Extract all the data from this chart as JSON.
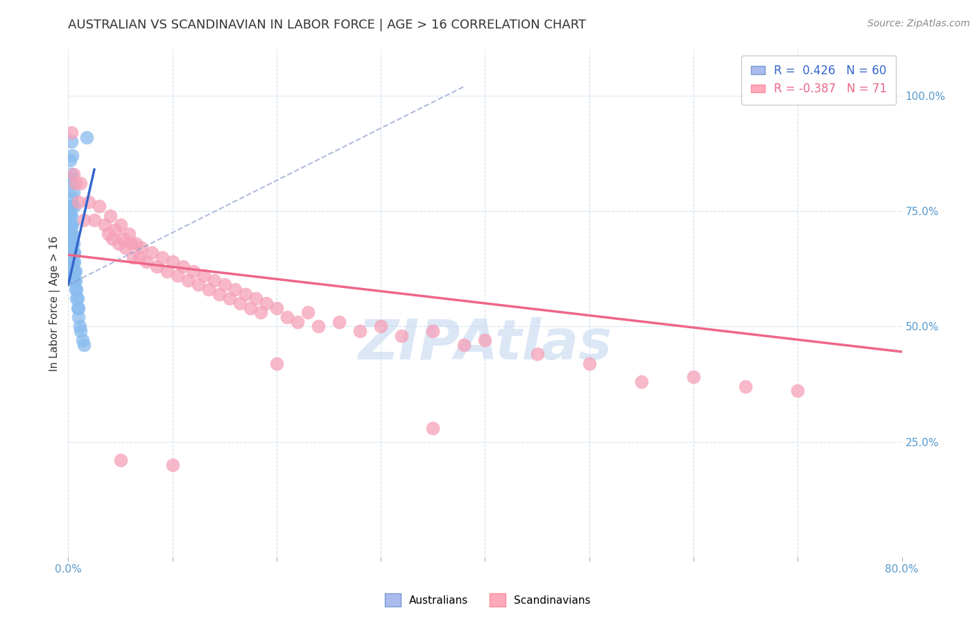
{
  "title": "AUSTRALIAN VS SCANDINAVIAN IN LABOR FORCE | AGE > 16 CORRELATION CHART",
  "source": "Source: ZipAtlas.com",
  "ylabel": "In Labor Force | Age > 16",
  "xlim": [
    0.0,
    0.8
  ],
  "ylim": [
    0.0,
    1.1
  ],
  "xticks": [
    0.0,
    0.1,
    0.2,
    0.3,
    0.4,
    0.5,
    0.6,
    0.7,
    0.8
  ],
  "yticks_right": [
    0.25,
    0.5,
    0.75,
    1.0
  ],
  "yticklabels_right": [
    "25.0%",
    "50.0%",
    "75.0%",
    "100.0%"
  ],
  "aus_color": "#88bbee",
  "scand_color": "#f5a0b8",
  "aus_line_color": "#3366cc",
  "scand_line_color": "#ee6688",
  "watermark": "ZIPAtlas",
  "watermark_color": "#c5d8f0",
  "aus_points": [
    [
      0.001,
      0.64
    ],
    [
      0.001,
      0.66
    ],
    [
      0.001,
      0.68
    ],
    [
      0.001,
      0.7
    ],
    [
      0.002,
      0.62
    ],
    [
      0.002,
      0.64
    ],
    [
      0.002,
      0.66
    ],
    [
      0.002,
      0.68
    ],
    [
      0.002,
      0.7
    ],
    [
      0.002,
      0.72
    ],
    [
      0.002,
      0.74
    ],
    [
      0.002,
      0.76
    ],
    [
      0.003,
      0.62
    ],
    [
      0.003,
      0.64
    ],
    [
      0.003,
      0.65
    ],
    [
      0.003,
      0.66
    ],
    [
      0.003,
      0.68
    ],
    [
      0.003,
      0.7
    ],
    [
      0.003,
      0.72
    ],
    [
      0.003,
      0.74
    ],
    [
      0.003,
      0.76
    ],
    [
      0.003,
      0.78
    ],
    [
      0.004,
      0.62
    ],
    [
      0.004,
      0.64
    ],
    [
      0.004,
      0.66
    ],
    [
      0.004,
      0.68
    ],
    [
      0.004,
      0.7
    ],
    [
      0.004,
      0.72
    ],
    [
      0.005,
      0.6
    ],
    [
      0.005,
      0.62
    ],
    [
      0.005,
      0.64
    ],
    [
      0.005,
      0.66
    ],
    [
      0.005,
      0.68
    ],
    [
      0.006,
      0.6
    ],
    [
      0.006,
      0.62
    ],
    [
      0.006,
      0.64
    ],
    [
      0.006,
      0.66
    ],
    [
      0.007,
      0.58
    ],
    [
      0.007,
      0.6
    ],
    [
      0.007,
      0.62
    ],
    [
      0.008,
      0.56
    ],
    [
      0.008,
      0.58
    ],
    [
      0.009,
      0.54
    ],
    [
      0.009,
      0.56
    ],
    [
      0.01,
      0.52
    ],
    [
      0.01,
      0.54
    ],
    [
      0.011,
      0.5
    ],
    [
      0.012,
      0.49
    ],
    [
      0.014,
      0.47
    ],
    [
      0.015,
      0.46
    ],
    [
      0.001,
      0.82
    ],
    [
      0.002,
      0.86
    ],
    [
      0.003,
      0.9
    ],
    [
      0.004,
      0.81
    ],
    [
      0.005,
      0.79
    ],
    [
      0.006,
      0.76
    ],
    [
      0.002,
      0.75
    ],
    [
      0.003,
      0.83
    ],
    [
      0.004,
      0.87
    ],
    [
      0.018,
      0.91
    ]
  ],
  "scand_points": [
    [
      0.003,
      0.92
    ],
    [
      0.005,
      0.83
    ],
    [
      0.007,
      0.81
    ],
    [
      0.01,
      0.77
    ],
    [
      0.012,
      0.81
    ],
    [
      0.015,
      0.73
    ],
    [
      0.02,
      0.77
    ],
    [
      0.025,
      0.73
    ],
    [
      0.03,
      0.76
    ],
    [
      0.035,
      0.72
    ],
    [
      0.038,
      0.7
    ],
    [
      0.04,
      0.74
    ],
    [
      0.042,
      0.69
    ],
    [
      0.045,
      0.71
    ],
    [
      0.048,
      0.68
    ],
    [
      0.05,
      0.72
    ],
    [
      0.052,
      0.69
    ],
    [
      0.055,
      0.67
    ],
    [
      0.058,
      0.7
    ],
    [
      0.06,
      0.68
    ],
    [
      0.062,
      0.65
    ],
    [
      0.065,
      0.68
    ],
    [
      0.068,
      0.65
    ],
    [
      0.07,
      0.67
    ],
    [
      0.075,
      0.64
    ],
    [
      0.08,
      0.66
    ],
    [
      0.085,
      0.63
    ],
    [
      0.09,
      0.65
    ],
    [
      0.095,
      0.62
    ],
    [
      0.1,
      0.64
    ],
    [
      0.105,
      0.61
    ],
    [
      0.11,
      0.63
    ],
    [
      0.115,
      0.6
    ],
    [
      0.12,
      0.62
    ],
    [
      0.125,
      0.59
    ],
    [
      0.13,
      0.61
    ],
    [
      0.135,
      0.58
    ],
    [
      0.14,
      0.6
    ],
    [
      0.145,
      0.57
    ],
    [
      0.15,
      0.59
    ],
    [
      0.155,
      0.56
    ],
    [
      0.16,
      0.58
    ],
    [
      0.165,
      0.55
    ],
    [
      0.17,
      0.57
    ],
    [
      0.175,
      0.54
    ],
    [
      0.18,
      0.56
    ],
    [
      0.185,
      0.53
    ],
    [
      0.19,
      0.55
    ],
    [
      0.2,
      0.54
    ],
    [
      0.21,
      0.52
    ],
    [
      0.22,
      0.51
    ],
    [
      0.23,
      0.53
    ],
    [
      0.24,
      0.5
    ],
    [
      0.26,
      0.51
    ],
    [
      0.28,
      0.49
    ],
    [
      0.3,
      0.5
    ],
    [
      0.32,
      0.48
    ],
    [
      0.35,
      0.49
    ],
    [
      0.38,
      0.46
    ],
    [
      0.4,
      0.47
    ],
    [
      0.45,
      0.44
    ],
    [
      0.5,
      0.42
    ],
    [
      0.55,
      0.38
    ],
    [
      0.6,
      0.39
    ],
    [
      0.65,
      0.37
    ],
    [
      0.7,
      0.36
    ],
    [
      0.05,
      0.21
    ],
    [
      0.1,
      0.2
    ],
    [
      0.2,
      0.42
    ],
    [
      0.35,
      0.28
    ]
  ],
  "aus_line": {
    "x0": 0.0,
    "x1": 0.025,
    "y0": 0.59,
    "y1": 0.84
  },
  "aus_line_dash": {
    "x0": 0.0,
    "x1": 0.38,
    "y0": 0.59,
    "y1": 1.02
  },
  "scand_line": {
    "x0": 0.0,
    "x1": 0.8,
    "y0": 0.655,
    "y1": 0.445
  }
}
